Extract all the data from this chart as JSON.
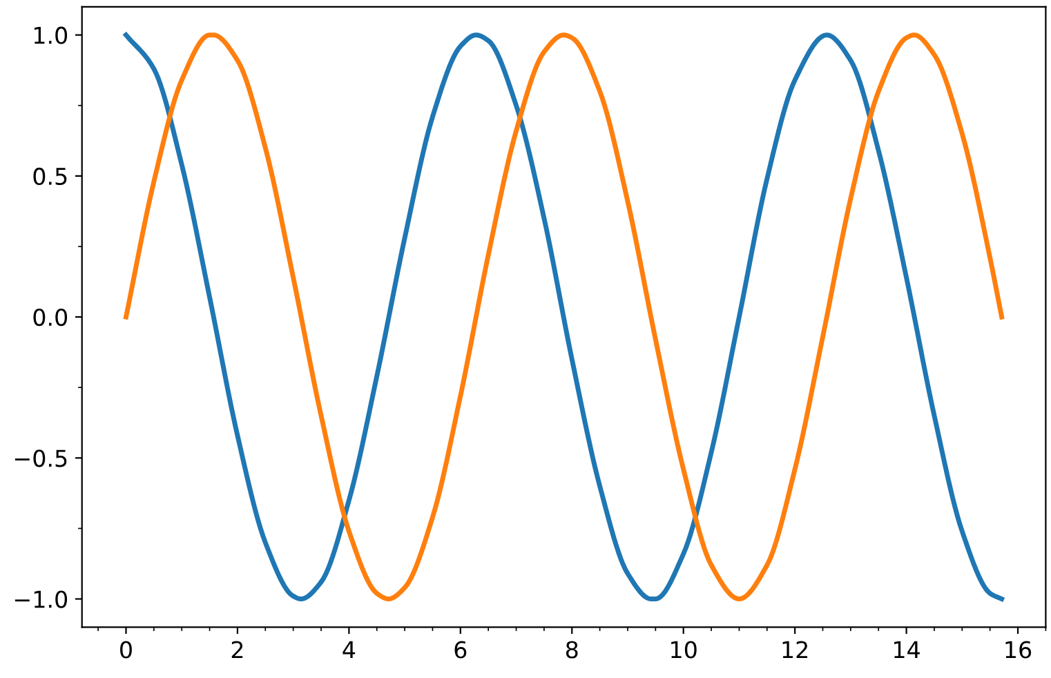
{
  "chart_data": {
    "type": "line",
    "xlim": [
      -0.79,
      16.5
    ],
    "ylim": [
      -1.1,
      1.1
    ],
    "xticks": [
      0,
      2,
      4,
      6,
      8,
      10,
      12,
      14,
      16
    ],
    "yticks": [
      {
        "value": -1,
        "label": "−1.0"
      },
      {
        "value": -0.5,
        "label": "−0.5"
      },
      {
        "value": 0,
        "label": "0.0"
      },
      {
        "value": 0.5,
        "label": "0.5"
      },
      {
        "value": 1,
        "label": "1.0"
      }
    ],
    "grid": false,
    "marker": "none",
    "line_style": "solid",
    "series": [
      {
        "color": "#1f77b4",
        "x": [
          0,
          0.5,
          1,
          1.5,
          2,
          2.5,
          3,
          3.14,
          3.5,
          4,
          4.5,
          5,
          5.5,
          6,
          6.28,
          6.5,
          7,
          7.5,
          8,
          8.5,
          9,
          9.42,
          9.5,
          10,
          10.5,
          11,
          11.5,
          12,
          12.57,
          13,
          13.5,
          14,
          14.5,
          15,
          15.5,
          15.71
        ],
        "values": [
          1.0,
          0.88,
          0.54,
          0.07,
          -0.42,
          -0.8,
          -0.99,
          -1.0,
          -0.94,
          -0.65,
          -0.21,
          0.28,
          0.71,
          0.96,
          1.0,
          0.98,
          0.75,
          0.35,
          -0.15,
          -0.6,
          -0.91,
          -1.0,
          -1.0,
          -0.84,
          -0.48,
          0.0,
          0.49,
          0.84,
          1.0,
          0.91,
          0.59,
          0.14,
          -0.35,
          -0.76,
          -0.98,
          -1.0
        ]
      },
      {
        "color": "#ff7f0e",
        "x": [
          0,
          0.5,
          1,
          1.5,
          1.57,
          2,
          2.5,
          3,
          3.5,
          4,
          4.5,
          4.71,
          5,
          5.5,
          6,
          6.5,
          7,
          7.5,
          7.85,
          8,
          8.5,
          9,
          9.5,
          10,
          10.5,
          11,
          11.5,
          12,
          12.5,
          13,
          13.5,
          14,
          14.14,
          14.5,
          15,
          15.5,
          15.71
        ],
        "values": [
          0.0,
          0.48,
          0.84,
          1.0,
          1.0,
          0.91,
          0.6,
          0.14,
          -0.35,
          -0.76,
          -0.98,
          -1.0,
          -0.96,
          -0.71,
          -0.28,
          0.22,
          0.66,
          0.94,
          1.0,
          0.99,
          0.8,
          0.41,
          -0.08,
          -0.54,
          -0.88,
          -1.0,
          -0.88,
          -0.54,
          -0.07,
          0.42,
          0.8,
          0.99,
          1.0,
          0.93,
          0.65,
          0.21,
          0.0
        ]
      }
    ]
  }
}
